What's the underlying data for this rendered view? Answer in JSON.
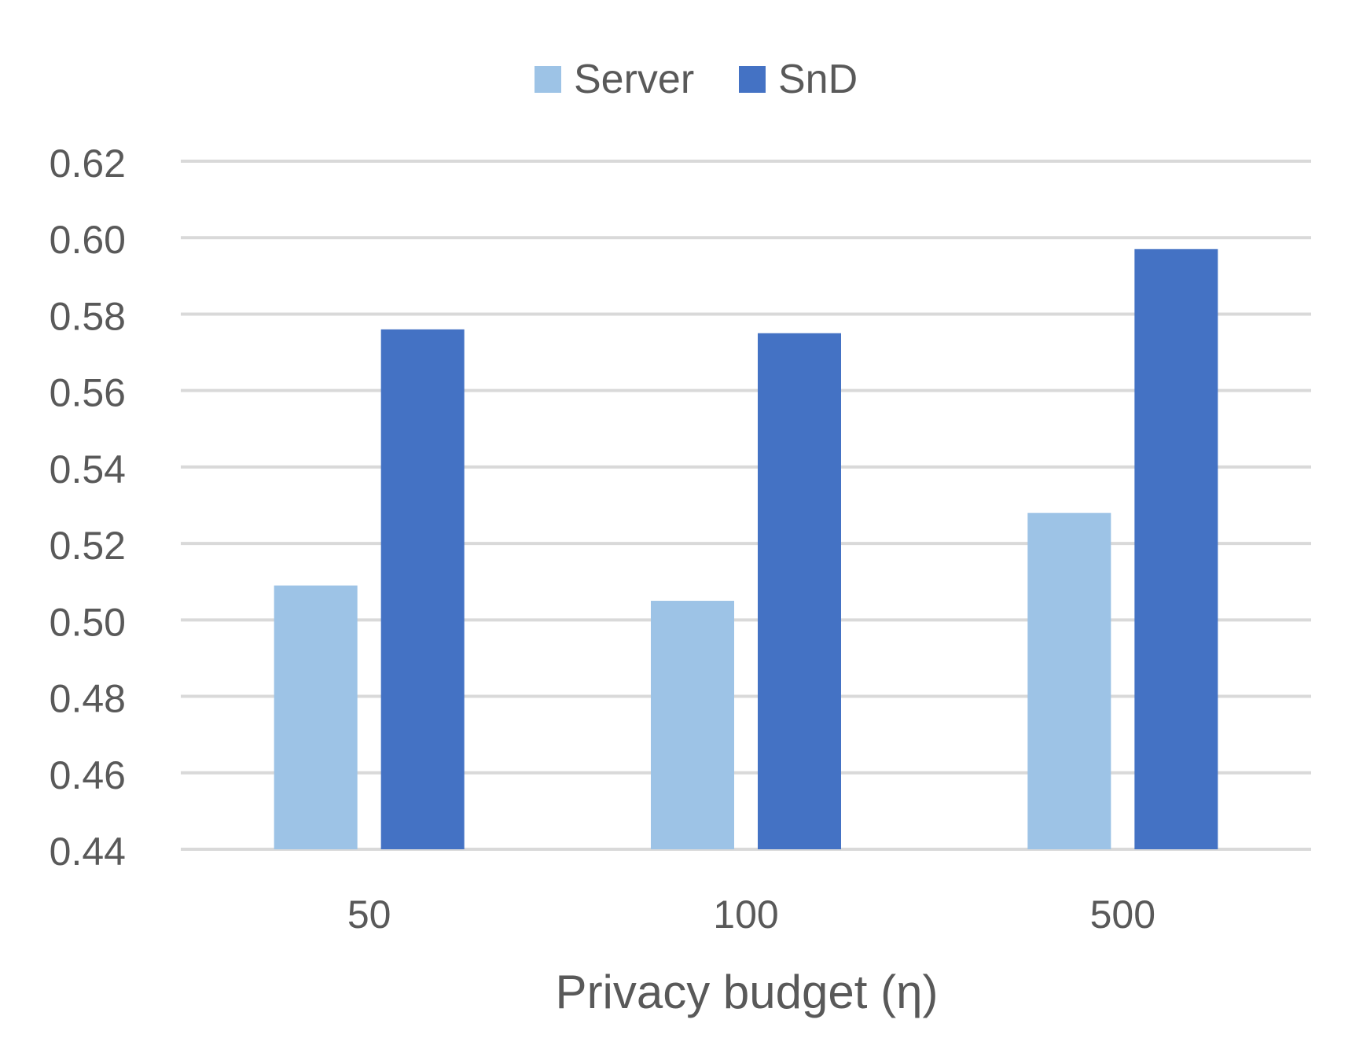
{
  "chart_data": {
    "type": "bar",
    "title": "",
    "xlabel": "Privacy budget (η)",
    "ylabel": "",
    "categories": [
      "50",
      "100",
      "500"
    ],
    "series": [
      {
        "name": "Server",
        "color": "#9DC3E6",
        "values": [
          0.509,
          0.505,
          0.528
        ]
      },
      {
        "name": "SnD",
        "color": "#4472C4",
        "values": [
          0.576,
          0.575,
          0.597
        ]
      }
    ],
    "ylim": [
      0.44,
      0.62
    ],
    "yticks": [
      "0.44",
      "0.46",
      "0.48",
      "0.50",
      "0.52",
      "0.54",
      "0.56",
      "0.58",
      "0.60",
      "0.62"
    ],
    "grid": true,
    "legend_position": "top-center"
  }
}
